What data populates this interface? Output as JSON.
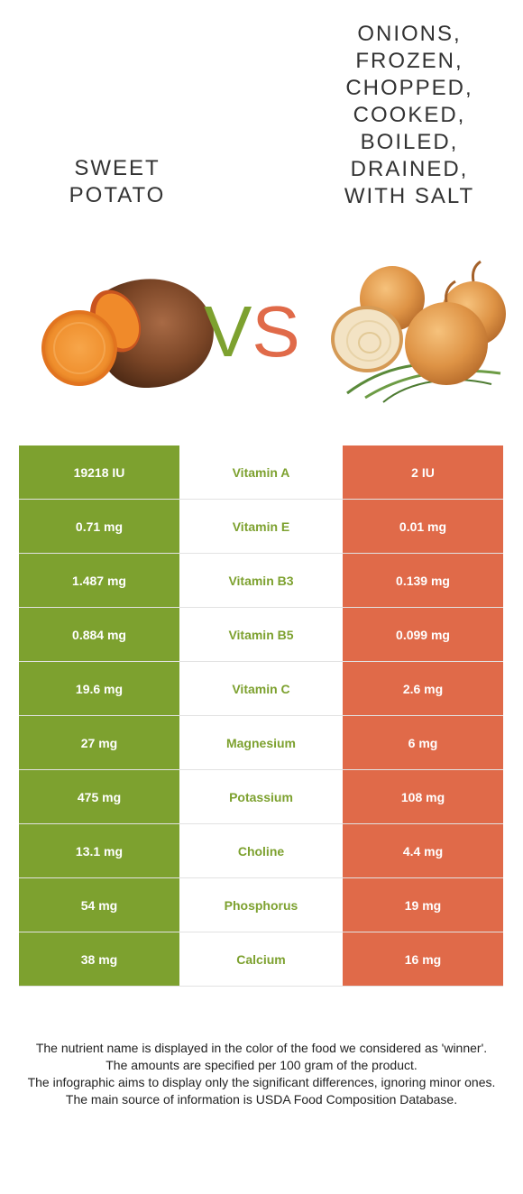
{
  "left_food": {
    "name": "SWEET\nPOTATO",
    "color": "#7da12f",
    "image_icon": "sweet-potato-illustration"
  },
  "right_food": {
    "name": "ONIONS,\nFROZEN,\nCHOPPED,\nCOOKED,\nBOILED,\nDRAINED,\nWITH SALT",
    "color": "#e06a49",
    "image_icon": "onions-illustration"
  },
  "vs": {
    "v": "V",
    "s": "S"
  },
  "rows": [
    {
      "left": "19218 IU",
      "nutrient": "Vitamin A",
      "right": "2 IU"
    },
    {
      "left": "0.71 mg",
      "nutrient": "Vitamin E",
      "right": "0.01 mg"
    },
    {
      "left": "1.487 mg",
      "nutrient": "Vitamin B3",
      "right": "0.139 mg"
    },
    {
      "left": "0.884 mg",
      "nutrient": "Vitamin B5",
      "right": "0.099 mg"
    },
    {
      "left": "19.6 mg",
      "nutrient": "Vitamin C",
      "right": "2.6 mg"
    },
    {
      "left": "27 mg",
      "nutrient": "Magnesium",
      "right": "6 mg"
    },
    {
      "left": "475 mg",
      "nutrient": "Potassium",
      "right": "108 mg"
    },
    {
      "left": "13.1 mg",
      "nutrient": "Choline",
      "right": "4.4 mg"
    },
    {
      "left": "54 mg",
      "nutrient": "Phosphorus",
      "right": "19 mg"
    },
    {
      "left": "38 mg",
      "nutrient": "Calcium",
      "right": "16 mg"
    }
  ],
  "footnotes": [
    "The nutrient name is displayed in the color of the food we considered as 'winner'.",
    "The amounts are specified per 100 gram of the product.",
    "The infographic aims to display only the significant differences, ignoring minor ones.",
    "The main source of information is USDA Food Composition Database."
  ]
}
